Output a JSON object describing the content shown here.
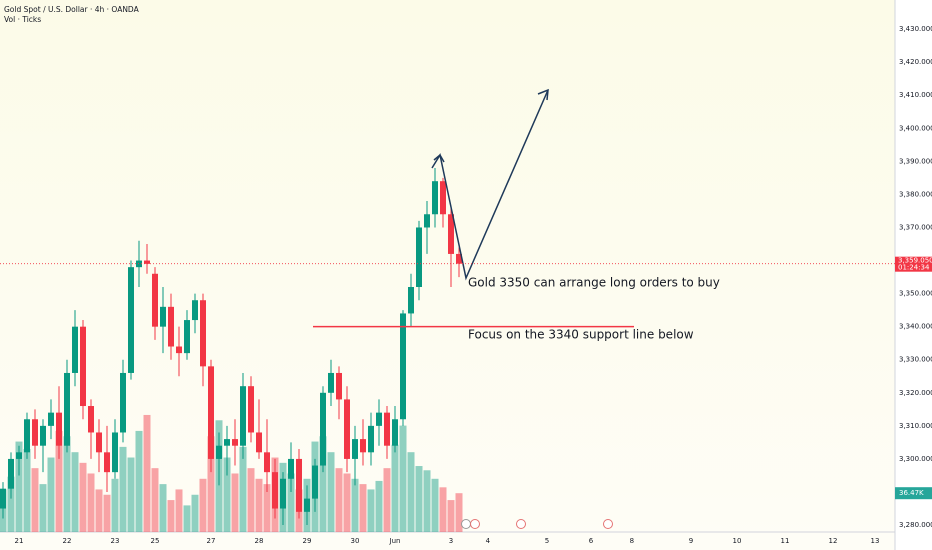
{
  "chart_data": {
    "type": "candlestick",
    "title": "Gold Spot / U.S. Dollar · 4h · OANDA",
    "subtitle": "Vol · Ticks",
    "open": [
      3285,
      3291,
      3300,
      3302,
      3312,
      3304,
      3310,
      3314,
      3304,
      3326,
      3340,
      3316,
      3308,
      3302,
      3296,
      3308,
      3326,
      3358,
      3360,
      3356,
      3340,
      3346,
      3334,
      3332,
      3342,
      3348,
      3328,
      3300,
      3304,
      3306,
      3304,
      3322,
      3308,
      3302,
      3296,
      3285,
      3294,
      3300,
      3284,
      3288,
      3298,
      3320,
      3326,
      3318,
      3300,
      3306,
      3302,
      3310,
      3314,
      3304,
      3312,
      3344,
      3352,
      3370,
      3374,
      3384,
      3374,
      3362
    ],
    "high": [
      3293,
      3302,
      3304,
      3314,
      3315,
      3312,
      3318,
      3322,
      3330,
      3345,
      3342,
      3318,
      3312,
      3310,
      3312,
      3330,
      3360,
      3366,
      3365,
      3358,
      3352,
      3350,
      3340,
      3345,
      3350,
      3350,
      3330,
      3308,
      3310,
      3312,
      3326,
      3325,
      3318,
      3312,
      3300,
      3296,
      3305,
      3303,
      3292,
      3300,
      3322,
      3330,
      3328,
      3322,
      3310,
      3312,
      3314,
      3318,
      3316,
      3316,
      3345,
      3356,
      3372,
      3378,
      3388,
      3385,
      3376,
      3364
    ],
    "low": [
      3282,
      3288,
      3295,
      3300,
      3300,
      3296,
      3306,
      3300,
      3302,
      3322,
      3312,
      3300,
      3296,
      3290,
      3294,
      3305,
      3324,
      3352,
      3356,
      3336,
      3332,
      3330,
      3325,
      3330,
      3338,
      3322,
      3296,
      3292,
      3295,
      3298,
      3300,
      3305,
      3300,
      3290,
      3282,
      3280,
      3290,
      3282,
      3280,
      3284,
      3296,
      3316,
      3312,
      3296,
      3292,
      3298,
      3298,
      3304,
      3300,
      3302,
      3310,
      3340,
      3348,
      3362,
      3370,
      3370,
      3352,
      3355
    ],
    "close": [
      3291,
      3300,
      3302,
      3312,
      3304,
      3310,
      3314,
      3304,
      3326,
      3340,
      3316,
      3308,
      3302,
      3296,
      3308,
      3326,
      3358,
      3360,
      3359,
      3340,
      3346,
      3334,
      3332,
      3342,
      3348,
      3328,
      3300,
      3304,
      3306,
      3304,
      3322,
      3308,
      3302,
      3296,
      3285,
      3294,
      3300,
      3284,
      3288,
      3298,
      3320,
      3326,
      3318,
      3300,
      3306,
      3302,
      3310,
      3314,
      3304,
      3312,
      3344,
      3352,
      3370,
      3374,
      3384,
      3374,
      3362,
      3359.05
    ],
    "volume": [
      40000,
      52000,
      85000,
      78000,
      60000,
      45000,
      70000,
      95000,
      90000,
      75000,
      65000,
      55000,
      40000,
      35000,
      50000,
      80000,
      70000,
      95000,
      110000,
      60000,
      45000,
      30000,
      40000,
      25000,
      35000,
      50000,
      90000,
      105000,
      70000,
      55000,
      80000,
      60000,
      50000,
      45000,
      70000,
      65000,
      55000,
      40000,
      50000,
      85000,
      90000,
      75000,
      60000,
      55000,
      50000,
      45000,
      40000,
      48000,
      60000,
      82000,
      100000,
      75000,
      62000,
      58000,
      50000,
      42000,
      30000,
      36470
    ],
    "volume_label": "36.47K",
    "up_color": "#089981",
    "down_color": "#f23645",
    "xlim": [
      -0.375,
      111.5
    ],
    "ylim": [
      3277.9,
      3438.8
    ],
    "vlim": [
      0,
      500000
    ],
    "xticks": [
      {
        "value": 2,
        "label": "21"
      },
      {
        "value": 8,
        "label": "22"
      },
      {
        "value": 14,
        "label": "23"
      },
      {
        "value": 19,
        "label": "25"
      },
      {
        "value": 26,
        "label": "27"
      },
      {
        "value": 32,
        "label": "28"
      },
      {
        "value": 38,
        "label": "29"
      },
      {
        "value": 44,
        "label": "30"
      },
      {
        "value": 49,
        "label": "Jun"
      },
      {
        "value": 56,
        "label": "3"
      },
      {
        "value": 60.6,
        "label": "4"
      },
      {
        "value": 68,
        "label": "5"
      },
      {
        "value": 73.5,
        "label": "6"
      },
      {
        "value": 78.6,
        "label": "8"
      },
      {
        "value": 86,
        "label": "9"
      },
      {
        "value": 91.75,
        "label": "10"
      },
      {
        "value": 97.75,
        "label": "11"
      },
      {
        "value": 103.75,
        "label": "12"
      },
      {
        "value": 109,
        "label": "13"
      }
    ],
    "yticks": [
      {
        "value": 3280,
        "label": "3,280.000"
      },
      {
        "value": 3290,
        "label": "3,290.000"
      },
      {
        "value": 3300,
        "label": "3,300.000"
      },
      {
        "value": 3310,
        "label": "3,310.000"
      },
      {
        "value": 3320,
        "label": "3,320.000"
      },
      {
        "value": 3330,
        "label": "3,330.000"
      },
      {
        "value": 3340,
        "label": "3,340.000"
      },
      {
        "value": 3350,
        "label": "3,350.000"
      },
      {
        "value": 3360,
        "label": "3,360.000"
      },
      {
        "value": 3370,
        "label": "3,370.000"
      },
      {
        "value": 3380,
        "label": "3,380.000"
      },
      {
        "value": 3390,
        "label": "3,390.000"
      },
      {
        "value": 3400,
        "label": "3,400.000"
      },
      {
        "value": 3410,
        "label": "3,410.000"
      },
      {
        "value": 3420,
        "label": "3,420.000"
      },
      {
        "value": 3430,
        "label": "3,430.000"
      }
    ],
    "last_price": {
      "value": 3359.05,
      "label": "3,359.050"
    },
    "countdown": "01:24:34",
    "support_level": 3340,
    "annotations": [
      "Gold 3350 can arrange long orders to buy",
      "Focus on the 3340 support line below"
    ]
  }
}
